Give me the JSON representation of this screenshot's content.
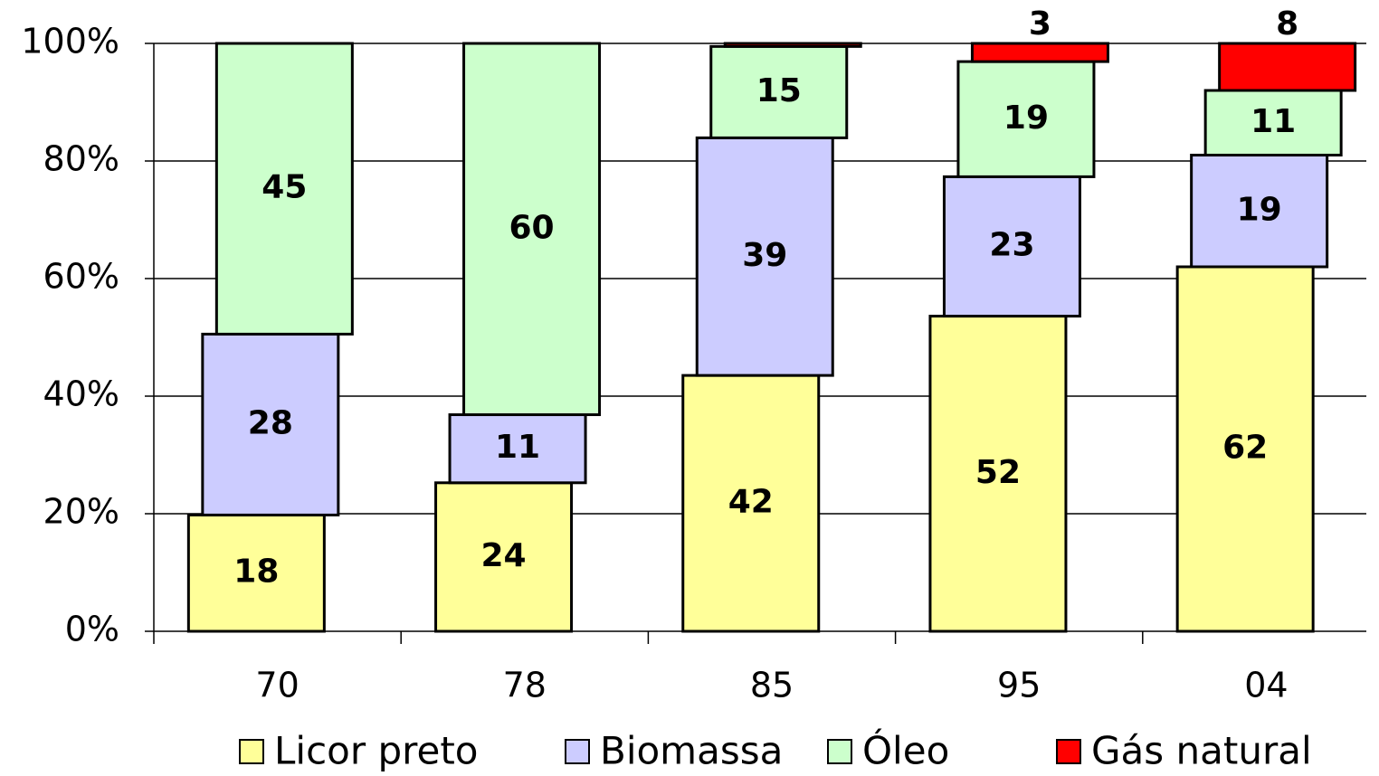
{
  "chart_data": {
    "type": "bar",
    "stacking": "percent",
    "categories": [
      "70",
      "78",
      "85",
      "95",
      "04"
    ],
    "series": [
      {
        "name": "Licor preto",
        "color": "#ffff99",
        "values": [
          18,
          24,
          42,
          52,
          62
        ]
      },
      {
        "name": "Biomassa",
        "color": "#ccccff",
        "values": [
          28,
          11,
          39,
          23,
          19
        ]
      },
      {
        "name": "Óleo",
        "color": "#ccffcc",
        "values": [
          45,
          60,
          15,
          19,
          11
        ]
      },
      {
        "name": "Gás natural",
        "color": "#ff0000",
        "values": [
          null,
          null,
          0.5,
          3,
          8
        ],
        "value_labels": [
          null,
          null,
          null,
          "3",
          "8"
        ]
      }
    ],
    "ylim": [
      0,
      100
    ],
    "yticks": [
      {
        "value": 0,
        "label": "0%"
      },
      {
        "value": 20,
        "label": "20%"
      },
      {
        "value": 40,
        "label": "40%"
      },
      {
        "value": 60,
        "label": "60%"
      },
      {
        "value": 80,
        "label": "80%"
      },
      {
        "value": 100,
        "label": "100%"
      }
    ],
    "grid": true,
    "legend": "bottom"
  }
}
